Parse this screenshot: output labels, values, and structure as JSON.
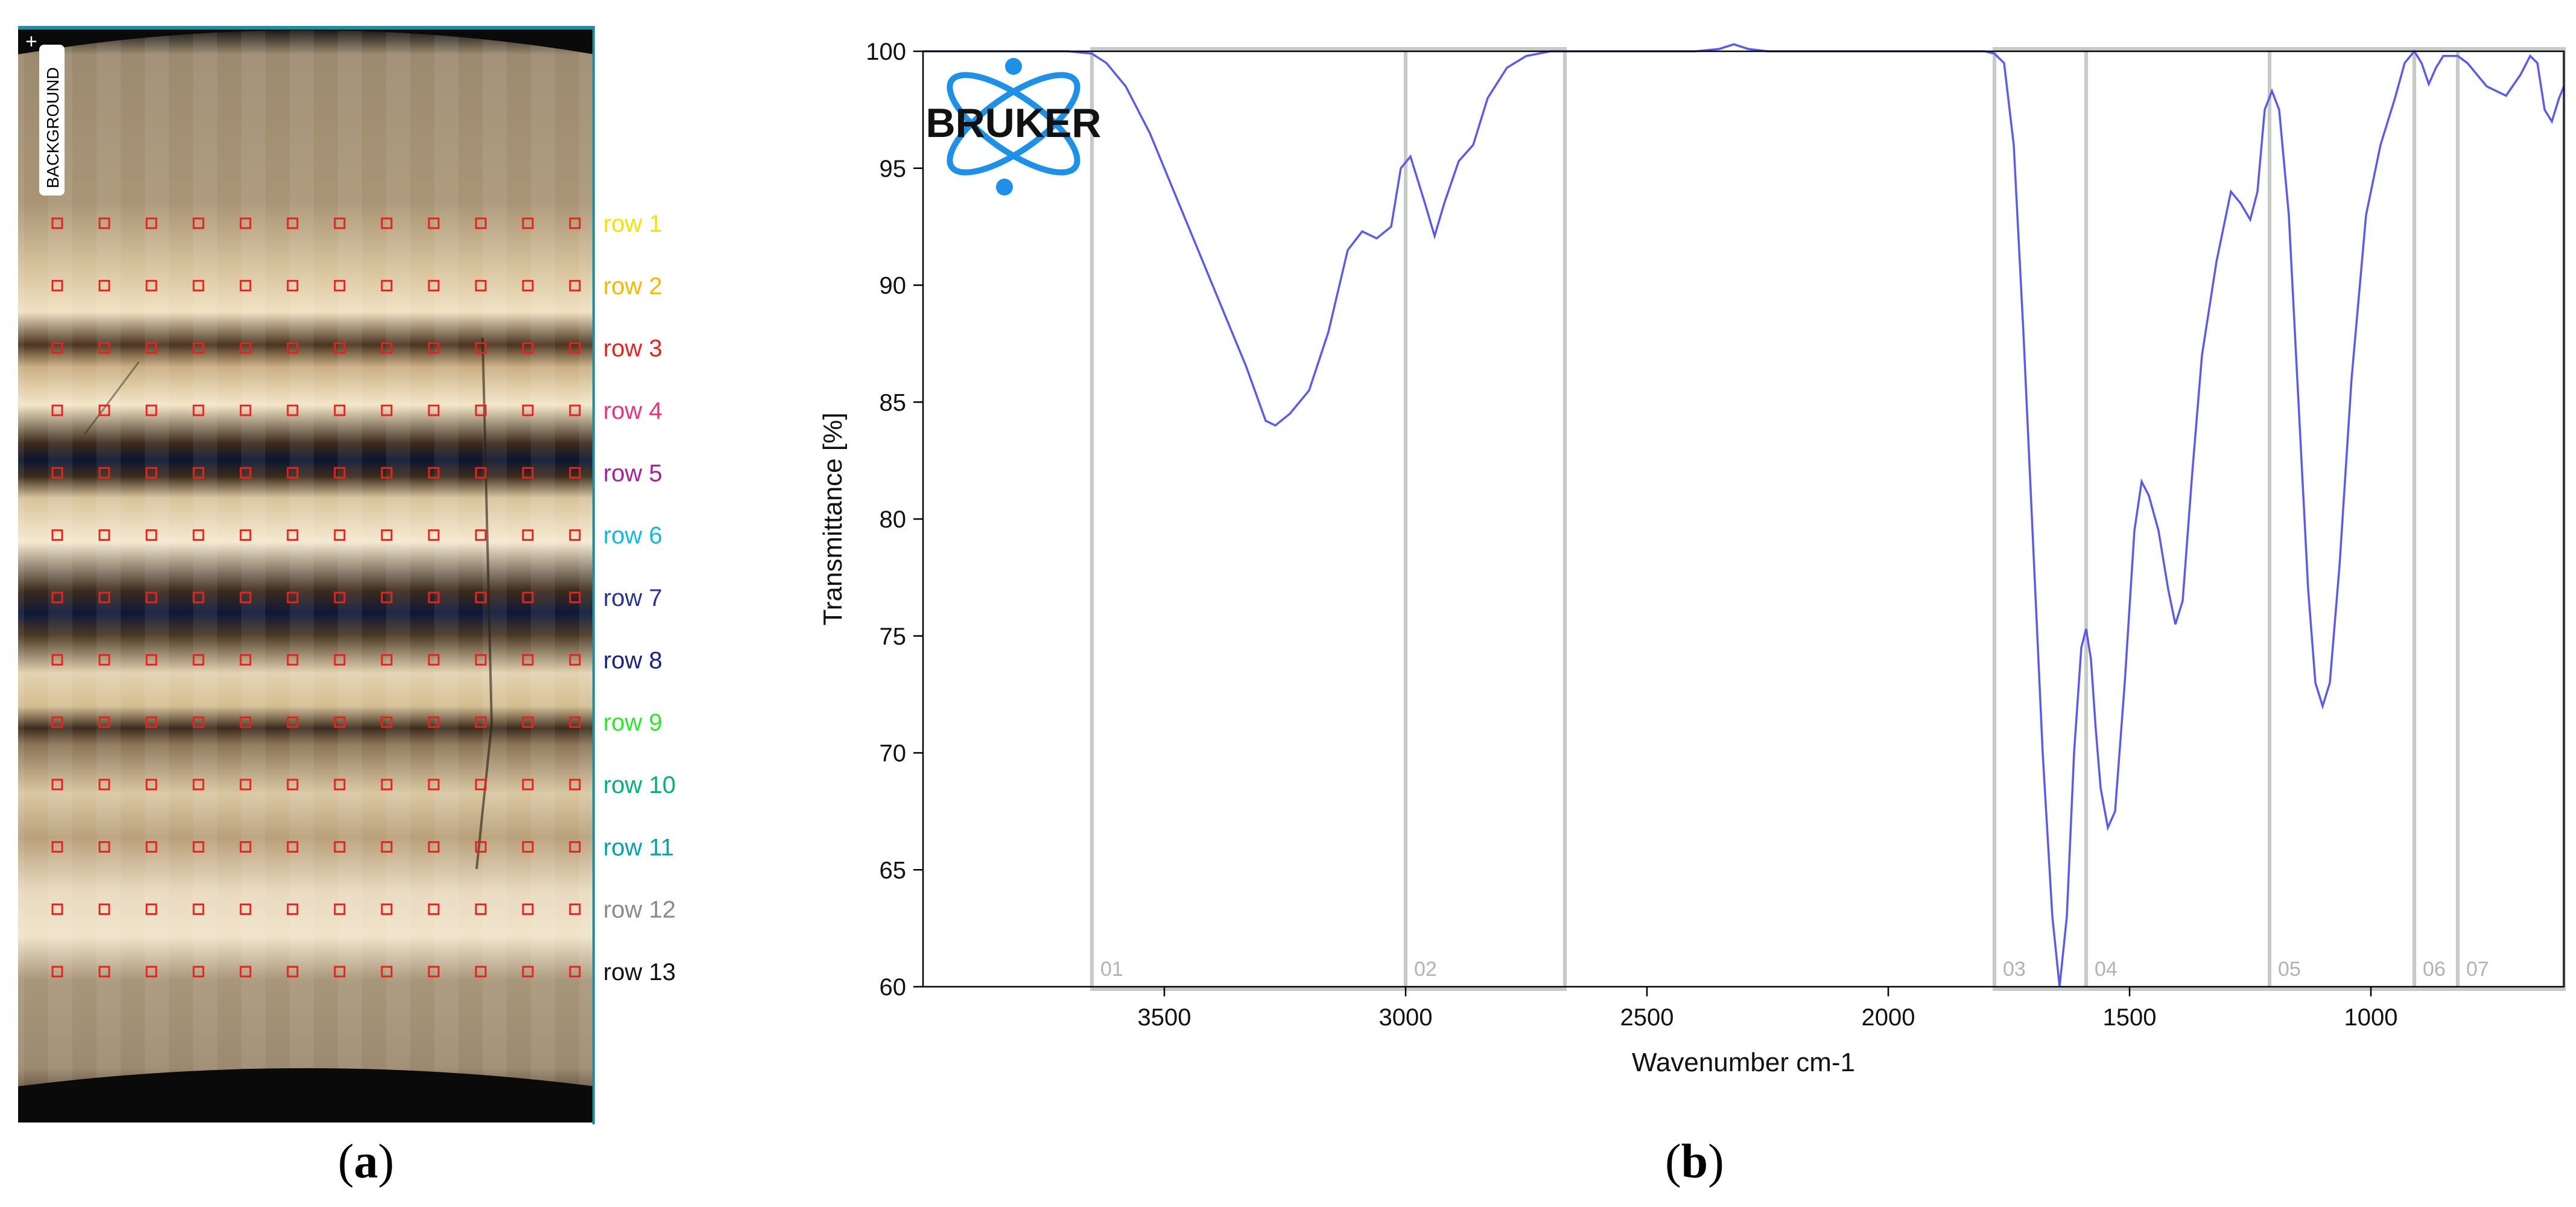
{
  "panel_a": {
    "background_label": "BACKGROUND",
    "plus_symbol": "+",
    "row_labels": [
      {
        "text": "row 1",
        "color": "#f2e300"
      },
      {
        "text": "row 2",
        "color": "#f5b800"
      },
      {
        "text": "row 3",
        "color": "#e8231e"
      },
      {
        "text": "row 4",
        "color": "#e8337f"
      },
      {
        "text": "row 5",
        "color": "#a5239a"
      },
      {
        "text": "row 6",
        "color": "#12b8e0"
      },
      {
        "text": "row 7",
        "color": "#283593"
      },
      {
        "text": "row 8",
        "color": "#1a237e"
      },
      {
        "text": "row 9",
        "color": "#2ee62e"
      },
      {
        "text": "row 10",
        "color": "#00b07a"
      },
      {
        "text": "row 11",
        "color": "#00a4a4"
      },
      {
        "text": "row 12",
        "color": "#8a8a8a"
      },
      {
        "text": "row 13",
        "color": "#111111"
      }
    ],
    "sample_columns": 12,
    "marker_color": "#e8231e",
    "frame_color": "#1e8fa0"
  },
  "captions": {
    "a": "a",
    "b": "b"
  },
  "logo": {
    "text": "BRUKER",
    "color": "#1e90e8"
  },
  "chart_data": {
    "type": "line",
    "xlabel": "Wavenumber cm-1",
    "ylabel": "Transmittance [%]",
    "xlim": [
      4000,
      600
    ],
    "ylim": [
      60,
      100
    ],
    "x_ticks": [
      3500,
      3000,
      2500,
      2000,
      1500,
      1000
    ],
    "y_ticks": [
      60,
      65,
      70,
      75,
      80,
      85,
      90,
      95,
      100
    ],
    "grid": false,
    "line_color": "#5b5bea",
    "region_color": "#c7cac7",
    "regions": [
      {
        "label": "01",
        "range": [
          3650,
          3000
        ]
      },
      {
        "label": "02",
        "range": [
          3000,
          2670
        ]
      },
      {
        "label": "03",
        "range": [
          1780,
          1590
        ]
      },
      {
        "label": "04",
        "range": [
          1590,
          1210
        ]
      },
      {
        "label": "05",
        "range": [
          1210,
          910
        ]
      },
      {
        "label": "06",
        "range": [
          910,
          820
        ]
      },
      {
        "label": "07",
        "range": [
          820,
          600
        ]
      }
    ],
    "series": [
      {
        "points": [
          [
            4000,
            100
          ],
          [
            3800,
            100
          ],
          [
            3700,
            100
          ],
          [
            3650,
            99.9
          ],
          [
            3620,
            99.5
          ],
          [
            3580,
            98.5
          ],
          [
            3530,
            96.5
          ],
          [
            3480,
            94
          ],
          [
            3430,
            91.5
          ],
          [
            3380,
            89
          ],
          [
            3330,
            86.5
          ],
          [
            3290,
            84.2
          ],
          [
            3270,
            84
          ],
          [
            3240,
            84.5
          ],
          [
            3200,
            85.5
          ],
          [
            3160,
            88
          ],
          [
            3120,
            91.5
          ],
          [
            3090,
            92.3
          ],
          [
            3060,
            92
          ],
          [
            3030,
            92.5
          ],
          [
            3010,
            95
          ],
          [
            2990,
            95.5
          ],
          [
            2960,
            93.5
          ],
          [
            2940,
            92.1
          ],
          [
            2920,
            93.5
          ],
          [
            2890,
            95.3
          ],
          [
            2860,
            96
          ],
          [
            2830,
            98
          ],
          [
            2790,
            99.3
          ],
          [
            2750,
            99.8
          ],
          [
            2700,
            100
          ],
          [
            2600,
            100
          ],
          [
            2500,
            100
          ],
          [
            2400,
            100
          ],
          [
            2350,
            100.1
          ],
          [
            2320,
            100.3
          ],
          [
            2290,
            100.1
          ],
          [
            2250,
            100
          ],
          [
            2000,
            100
          ],
          [
            1800,
            100
          ],
          [
            1780,
            99.9
          ],
          [
            1760,
            99.5
          ],
          [
            1740,
            96
          ],
          [
            1720,
            88
          ],
          [
            1700,
            79
          ],
          [
            1680,
            70
          ],
          [
            1660,
            63
          ],
          [
            1645,
            60
          ],
          [
            1630,
            63
          ],
          [
            1615,
            70
          ],
          [
            1600,
            74.5
          ],
          [
            1590,
            75.3
          ],
          [
            1580,
            74
          ],
          [
            1570,
            71
          ],
          [
            1560,
            68.5
          ],
          [
            1545,
            66.8
          ],
          [
            1530,
            67.5
          ],
          [
            1510,
            73
          ],
          [
            1490,
            79.5
          ],
          [
            1475,
            81.6
          ],
          [
            1460,
            81
          ],
          [
            1440,
            79.5
          ],
          [
            1420,
            77
          ],
          [
            1405,
            75.5
          ],
          [
            1390,
            76.5
          ],
          [
            1370,
            82
          ],
          [
            1350,
            87
          ],
          [
            1320,
            91
          ],
          [
            1290,
            94
          ],
          [
            1270,
            93.5
          ],
          [
            1250,
            92.8
          ],
          [
            1235,
            94
          ],
          [
            1220,
            97.5
          ],
          [
            1205,
            98.3
          ],
          [
            1190,
            97.5
          ],
          [
            1170,
            93
          ],
          [
            1150,
            85
          ],
          [
            1130,
            77
          ],
          [
            1115,
            73
          ],
          [
            1100,
            72
          ],
          [
            1085,
            73
          ],
          [
            1065,
            78
          ],
          [
            1040,
            86
          ],
          [
            1010,
            93
          ],
          [
            980,
            96
          ],
          [
            950,
            98
          ],
          [
            930,
            99.5
          ],
          [
            910,
            100
          ],
          [
            895,
            99.5
          ],
          [
            880,
            98.6
          ],
          [
            865,
            99.3
          ],
          [
            850,
            99.8
          ],
          [
            820,
            99.8
          ],
          [
            800,
            99.5
          ],
          [
            760,
            98.5
          ],
          [
            720,
            98.1
          ],
          [
            690,
            99
          ],
          [
            670,
            99.8
          ],
          [
            655,
            99.5
          ],
          [
            640,
            97.5
          ],
          [
            625,
            97
          ],
          [
            610,
            98
          ],
          [
            600,
            98.5
          ]
        ]
      }
    ]
  }
}
